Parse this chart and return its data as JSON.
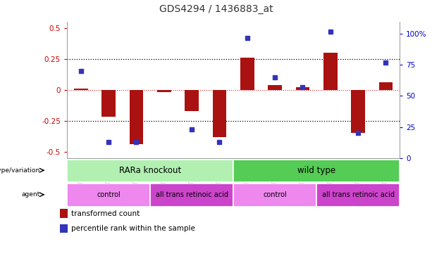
{
  "title": "GDS4294 / 1436883_at",
  "samples": [
    "GSM775291",
    "GSM775295",
    "GSM775299",
    "GSM775292",
    "GSM775296",
    "GSM775300",
    "GSM775293",
    "GSM775297",
    "GSM775301",
    "GSM775294",
    "GSM775298",
    "GSM775302"
  ],
  "red_bars": [
    0.01,
    -0.22,
    -0.44,
    -0.02,
    -0.17,
    -0.38,
    0.26,
    0.04,
    0.02,
    0.3,
    -0.35,
    0.06
  ],
  "blue_dots_pct": [
    65,
    8,
    8,
    null,
    18,
    8,
    92,
    60,
    52,
    97,
    15,
    72
  ],
  "ylim_left": [
    -0.55,
    0.55
  ],
  "ylim_right": [
    0,
    110
  ],
  "yticks_left": [
    -0.5,
    -0.25,
    0.0,
    0.25,
    0.5
  ],
  "ytick_labels_left": [
    "-0.5",
    "-0.25",
    "0",
    "0.25",
    "0.5"
  ],
  "yticks_right": [
    0,
    25,
    50,
    75,
    100
  ],
  "ytick_labels_right": [
    "0",
    "25",
    "50",
    "75",
    "100%"
  ],
  "hline_dotted": [
    0.25,
    -0.25
  ],
  "hline_red": 0.0,
  "bar_color": "#aa1111",
  "dot_color": "#3333bb",
  "title_color": "#333333",
  "bg_color": "#ffffff",
  "axis_bg": "#ffffff",
  "spine_color": "#999999",
  "genotype_groups": [
    {
      "label": "RARa knockout",
      "start": 0,
      "end": 6,
      "color": "#b2f0b2"
    },
    {
      "label": "wild type",
      "start": 6,
      "end": 12,
      "color": "#55cc55"
    }
  ],
  "agent_groups": [
    {
      "label": "control",
      "start": 0,
      "end": 3,
      "color": "#ee88ee"
    },
    {
      "label": "all trans retinoic acid",
      "start": 3,
      "end": 6,
      "color": "#cc44cc"
    },
    {
      "label": "control",
      "start": 6,
      "end": 9,
      "color": "#ee88ee"
    },
    {
      "label": "all trans retinoic acid",
      "start": 9,
      "end": 12,
      "color": "#cc44cc"
    }
  ],
  "legend_items": [
    {
      "label": "transformed count",
      "color": "#aa1111"
    },
    {
      "label": "percentile rank within the sample",
      "color": "#3333bb"
    }
  ],
  "bar_width": 0.5
}
